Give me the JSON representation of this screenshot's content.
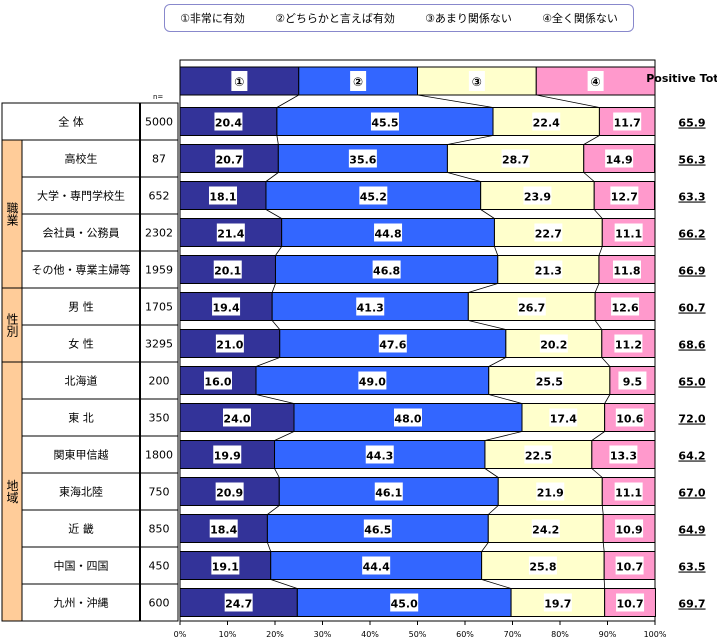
{
  "legend": [
    "①非常に有効",
    "②どちらかと言えば有効",
    "③あまり関係ない",
    "④全く関係ない"
  ],
  "header": {
    "markers": [
      "①",
      "②",
      "③",
      "④"
    ],
    "n_label": "n=",
    "positive_total": "Positive Total"
  },
  "colors": [
    "#333399",
    "#3366ff",
    "#ffffcc",
    "#ff99cc"
  ],
  "groups": [
    {
      "label": "",
      "rows": 1
    },
    {
      "label": "職業",
      "rows": 4
    },
    {
      "label": "性別",
      "rows": 2
    },
    {
      "label": "地域",
      "rows": 7
    }
  ],
  "chart_data": {
    "type": "bar",
    "stacked": true,
    "orientation": "horizontal",
    "series": [
      {
        "name": "①非常に有効"
      },
      {
        "name": "②どちらかと言えば有効"
      },
      {
        "name": "③あまり関係ない"
      },
      {
        "name": "④全く関係ない"
      }
    ],
    "rows": [
      {
        "label": "全 体",
        "n": "5000",
        "values": [
          20.4,
          45.5,
          22.4,
          11.7
        ],
        "positive_total": "65.9"
      },
      {
        "label": "高校生",
        "n": "87",
        "values": [
          20.7,
          35.6,
          28.7,
          14.9
        ],
        "positive_total": "56.3"
      },
      {
        "label": "大学・専門学校生",
        "n": "652",
        "values": [
          18.1,
          45.2,
          23.9,
          12.7
        ],
        "positive_total": "63.3"
      },
      {
        "label": "会社員・公務員",
        "n": "2302",
        "values": [
          21.4,
          44.8,
          22.7,
          11.1
        ],
        "positive_total": "66.2"
      },
      {
        "label": "その他・専業主婦等",
        "n": "1959",
        "values": [
          20.1,
          46.8,
          21.3,
          11.8
        ],
        "positive_total": "66.9"
      },
      {
        "label": "男 性",
        "n": "1705",
        "values": [
          19.4,
          41.3,
          26.7,
          12.6
        ],
        "positive_total": "60.7"
      },
      {
        "label": "女 性",
        "n": "3295",
        "values": [
          21.0,
          47.6,
          20.2,
          11.2
        ],
        "positive_total": "68.6"
      },
      {
        "label": "北海道",
        "n": "200",
        "values": [
          16.0,
          49.0,
          25.5,
          9.5
        ],
        "positive_total": "65.0"
      },
      {
        "label": "東 北",
        "n": "350",
        "values": [
          24.0,
          48.0,
          17.4,
          10.6
        ],
        "positive_total": "72.0"
      },
      {
        "label": "関東甲信越",
        "n": "1800",
        "values": [
          19.9,
          44.3,
          22.5,
          13.3
        ],
        "positive_total": "64.2"
      },
      {
        "label": "東海北陸",
        "n": "750",
        "values": [
          20.9,
          46.1,
          21.9,
          11.1
        ],
        "positive_total": "67.0"
      },
      {
        "label": "近 畿",
        "n": "850",
        "values": [
          18.4,
          46.5,
          24.2,
          10.9
        ],
        "positive_total": "64.9"
      },
      {
        "label": "中国・四国",
        "n": "450",
        "values": [
          19.1,
          44.4,
          25.8,
          10.7
        ],
        "positive_total": "63.5"
      },
      {
        "label": "九州・沖縄",
        "n": "600",
        "values": [
          24.7,
          45.0,
          19.7,
          10.7
        ],
        "positive_total": "69.7"
      }
    ],
    "header_bar": [
      25,
      25,
      25,
      25
    ],
    "xlim": [
      0,
      100
    ],
    "xticks": [
      "0%",
      "10%",
      "20%",
      "30%",
      "40%",
      "50%",
      "60%",
      "70%",
      "80%",
      "90%",
      "100%"
    ]
  }
}
